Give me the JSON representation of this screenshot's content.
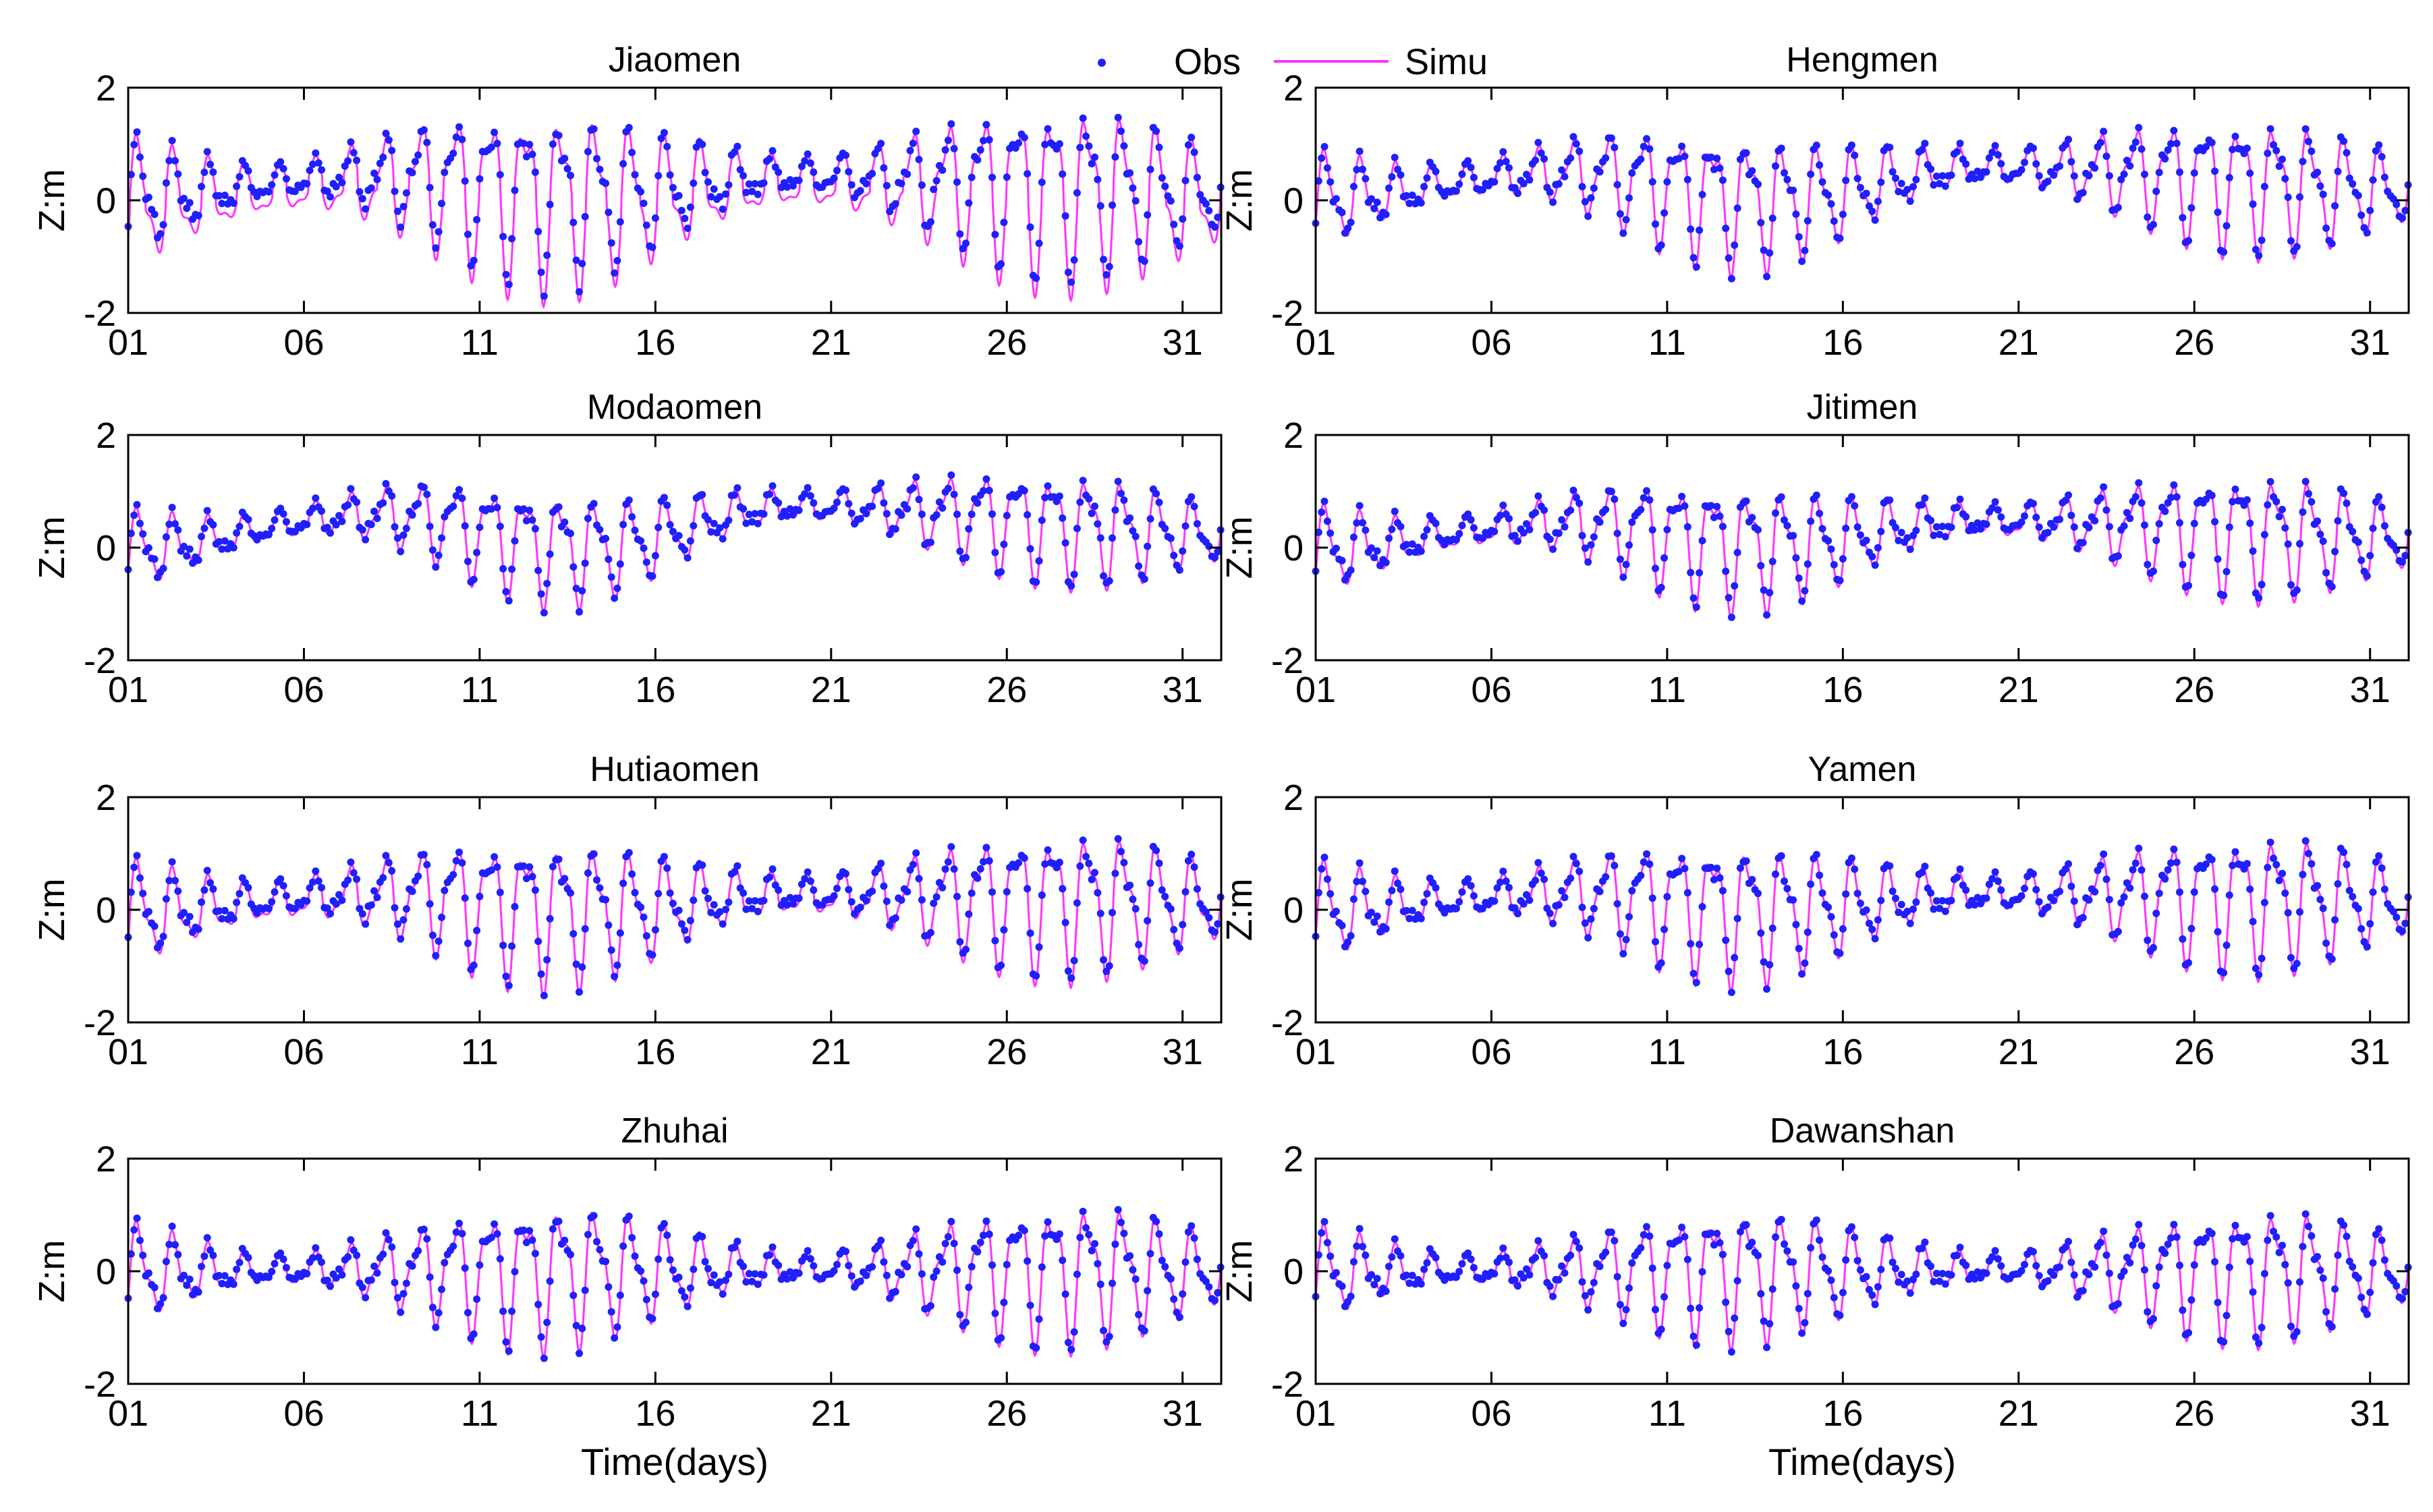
{
  "chart_data": [
    {
      "type": "scatter",
      "title": "Jiaomen",
      "ylabel": "Z:m",
      "xlabel": "",
      "ylim": [
        -2,
        2
      ],
      "yticks": [
        2,
        0,
        -2
      ],
      "xlim": [
        1,
        32.1
      ],
      "xticks": [
        "01",
        "06",
        "11",
        "16",
        "21",
        "26",
        "31"
      ],
      "series": [
        {
          "name": "Obs",
          "style": "dots"
        },
        {
          "name": "Simu",
          "style": "line"
        }
      ],
      "params": {
        "amp": [
          0.3,
          1.55
        ],
        "mean": [
          0.1,
          0.45,
          0.1,
          0.45,
          0.15
        ],
        "bias": 0.25
      }
    },
    {
      "type": "scatter",
      "title": "Hengmen",
      "ylabel": "Z:m",
      "xlabel": "",
      "ylim": [
        -2,
        2
      ],
      "yticks": [
        2,
        0,
        -2
      ],
      "xlim": [
        1,
        32.1
      ],
      "xticks": [
        "01",
        "06",
        "11",
        "16",
        "21",
        "26",
        "31"
      ],
      "series": [
        {
          "name": "Obs",
          "style": "dots"
        },
        {
          "name": "Simu",
          "style": "line"
        }
      ],
      "params": {
        "amp": [
          0.3,
          1.2
        ],
        "mean": [
          0.05,
          0.5,
          0.0,
          0.6,
          0.2
        ],
        "bias": 0.05
      }
    },
    {
      "type": "scatter",
      "title": "Modaomen",
      "ylabel": "Z:m",
      "xlabel": "",
      "ylim": [
        -2,
        2
      ],
      "yticks": [
        2,
        0,
        -2
      ],
      "xlim": [
        1,
        32.1
      ],
      "xticks": [
        "01",
        "06",
        "11",
        "16",
        "21",
        "26",
        "31"
      ],
      "series": [
        {
          "name": "Obs",
          "style": "dots"
        },
        {
          "name": "Simu",
          "style": "line"
        }
      ],
      "params": {
        "amp": [
          0.25,
          1.0
        ],
        "mean": [
          0.0,
          0.6,
          0.0,
          0.75,
          0.25
        ],
        "bias": 0.05
      }
    },
    {
      "type": "scatter",
      "title": "Jitimen",
      "ylabel": "Z:m",
      "xlabel": "",
      "ylim": [
        -2,
        2
      ],
      "yticks": [
        2,
        0,
        -2
      ],
      "xlim": [
        1,
        32.1
      ],
      "xticks": [
        "01",
        "06",
        "11",
        "16",
        "21",
        "26",
        "31"
      ],
      "series": [
        {
          "name": "Obs",
          "style": "dots"
        },
        {
          "name": "Simu",
          "style": "line"
        }
      ],
      "params": {
        "amp": [
          0.25,
          1.1
        ],
        "mean": [
          0.0,
          0.45,
          0.05,
          0.5,
          0.2
        ],
        "bias": 0.08
      }
    },
    {
      "type": "scatter",
      "title": "Hutiaomen",
      "ylabel": "Z:m",
      "xlabel": "",
      "ylim": [
        -2,
        2
      ],
      "yticks": [
        2,
        0,
        -2
      ],
      "xlim": [
        1,
        32.1
      ],
      "xticks": [
        "01",
        "06",
        "11",
        "16",
        "21",
        "26",
        "31"
      ],
      "series": [
        {
          "name": "Obs",
          "style": "dots"
        },
        {
          "name": "Simu",
          "style": "line"
        }
      ],
      "params": {
        "amp": [
          0.3,
          1.3
        ],
        "mean": [
          0.0,
          0.3,
          0.0,
          0.3,
          0.15
        ],
        "bias": 0.1
      }
    },
    {
      "type": "scatter",
      "title": "Yamen",
      "ylabel": "Z:m",
      "xlabel": "",
      "ylim": [
        -2,
        2
      ],
      "yticks": [
        2,
        0,
        -2
      ],
      "xlim": [
        1,
        32.1
      ],
      "xticks": [
        "01",
        "06",
        "11",
        "16",
        "21",
        "26",
        "31"
      ],
      "series": [
        {
          "name": "Obs",
          "style": "dots"
        },
        {
          "name": "Simu",
          "style": "line"
        }
      ],
      "params": {
        "amp": [
          0.3,
          1.25
        ],
        "mean": [
          0.0,
          0.3,
          0.0,
          0.3,
          0.15
        ],
        "bias": 0.05
      }
    },
    {
      "type": "scatter",
      "title": "Zhuhai",
      "ylabel": "Z:m",
      "xlabel": "Time(days)",
      "ylim": [
        -2,
        2
      ],
      "yticks": [
        2,
        0,
        -2
      ],
      "xlim": [
        1,
        32.1
      ],
      "xticks": [
        "01",
        "06",
        "11",
        "16",
        "21",
        "26",
        "31"
      ],
      "series": [
        {
          "name": "Obs",
          "style": "dots"
        },
        {
          "name": "Simu",
          "style": "line"
        }
      ],
      "params": {
        "amp": [
          0.25,
          1.3
        ],
        "mean": [
          0.0,
          0.05,
          0.0,
          0.05,
          0.0
        ],
        "bias": 0.05
      }
    },
    {
      "type": "scatter",
      "title": "Dawanshan",
      "ylabel": "Z:m",
      "xlabel": "Time(days)",
      "ylim": [
        -2,
        2
      ],
      "yticks": [
        2,
        0,
        -2
      ],
      "xlim": [
        1,
        32.1
      ],
      "xticks": [
        "01",
        "06",
        "11",
        "16",
        "21",
        "26",
        "31"
      ],
      "series": [
        {
          "name": "Obs",
          "style": "dots"
        },
        {
          "name": "Simu",
          "style": "line"
        }
      ],
      "params": {
        "amp": [
          0.25,
          1.2
        ],
        "mean": [
          0.0,
          0.05,
          0.0,
          0.05,
          0.0
        ],
        "bias": 0.05
      }
    }
  ],
  "legend": {
    "obs_label": "Obs",
    "simu_label": "Simu"
  },
  "colors": {
    "obs": "#1f1fff",
    "simu": "#ff33ff",
    "axes": "#000000"
  }
}
